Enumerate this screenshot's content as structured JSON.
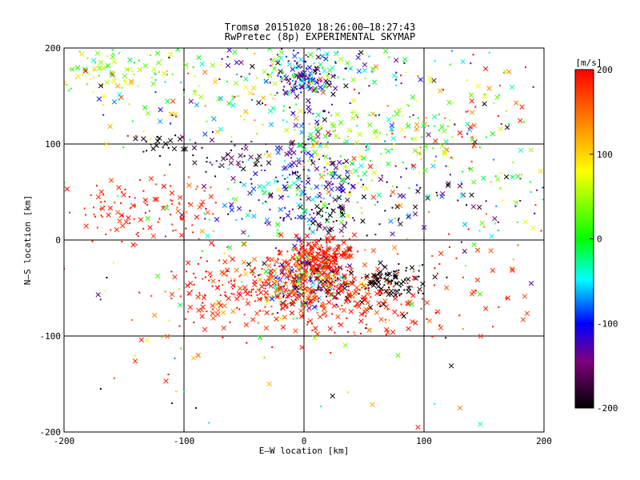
{
  "title": "Tromsø 20151020 18:26:00–18:27:43",
  "subtitle": "RwPretec (8p) EXPERIMENTAL SKYMAP",
  "chart_data": {
    "type": "scatter",
    "xlabel": "E–W location [km]",
    "ylabel": "N–S location [km]",
    "xlim": [
      -200,
      200
    ],
    "ylim": [
      -200,
      200
    ],
    "xticks": [
      "-200",
      "-100",
      "0",
      "100",
      "200"
    ],
    "yticks": [
      "-200",
      "-100",
      "0",
      "100",
      "200"
    ],
    "grid": true,
    "colorbar": {
      "label": "[m/s]",
      "range": [
        -200,
        200
      ],
      "ticks": [
        "200",
        "100",
        "0",
        "-100",
        "-200"
      ],
      "colors": [
        "#000000",
        "#800080",
        "#0000ff",
        "#00ffff",
        "#00ff00",
        "#ffff00",
        "#ff8000",
        "#ff0000"
      ]
    },
    "markers": [
      "x",
      "dot"
    ],
    "clusters": [
      {
        "x": 0,
        "y": 168,
        "sx": 12,
        "sy": 10,
        "n": 110,
        "v": -130,
        "vs": 40
      },
      {
        "x": -5,
        "y": 185,
        "sx": 40,
        "sy": 12,
        "n": 90,
        "v": -80,
        "vs": 80
      },
      {
        "x": -160,
        "y": 180,
        "sx": 25,
        "sy": 15,
        "n": 70,
        "v": 30,
        "vs": 40
      },
      {
        "x": -140,
        "y": 165,
        "sx": 40,
        "sy": 25,
        "n": 60,
        "v": 40,
        "vs": 80
      },
      {
        "x": -40,
        "y": 155,
        "sx": 50,
        "sy": 25,
        "n": 110,
        "v": 0,
        "vs": 110
      },
      {
        "x": 70,
        "y": 140,
        "sx": 50,
        "sy": 40,
        "n": 90,
        "v": 40,
        "vs": 110
      },
      {
        "x": 160,
        "y": 140,
        "sx": 30,
        "sy": 30,
        "n": 40,
        "v": 100,
        "vs": 120
      },
      {
        "x": -120,
        "y": 100,
        "sx": 10,
        "sy": 5,
        "n": 22,
        "v": -200,
        "vs": 8
      },
      {
        "x": -55,
        "y": 88,
        "sx": 20,
        "sy": 10,
        "n": 45,
        "v": -170,
        "vs": 20
      },
      {
        "x": 0,
        "y": 90,
        "sx": 15,
        "sy": 25,
        "n": 80,
        "v": -120,
        "vs": 50
      },
      {
        "x": 70,
        "y": 100,
        "sx": 60,
        "sy": 20,
        "n": 120,
        "v": 20,
        "vs": 60
      },
      {
        "x": -10,
        "y": 50,
        "sx": 30,
        "sy": 25,
        "n": 120,
        "v": -110,
        "vs": 60
      },
      {
        "x": 30,
        "y": 50,
        "sx": 30,
        "sy": 20,
        "n": 80,
        "v": 10,
        "vs": 90
      },
      {
        "x": -140,
        "y": 30,
        "sx": 30,
        "sy": 20,
        "n": 90,
        "v": 190,
        "vs": 15
      },
      {
        "x": -100,
        "y": 40,
        "sx": 15,
        "sy": 10,
        "n": 30,
        "v": 180,
        "vs": 20
      },
      {
        "x": 20,
        "y": 25,
        "sx": 10,
        "sy": 15,
        "n": 40,
        "v": -180,
        "vs": 30
      },
      {
        "x": 100,
        "y": 50,
        "sx": 40,
        "sy": 30,
        "n": 60,
        "v": -160,
        "vs": 40
      },
      {
        "x": 160,
        "y": 40,
        "sx": 25,
        "sy": 25,
        "n": 40,
        "v": 20,
        "vs": 90
      },
      {
        "x": -60,
        "y": 20,
        "sx": 30,
        "sy": 20,
        "n": 30,
        "v": 0,
        "vs": 100
      },
      {
        "x": 15,
        "y": -20,
        "sx": 15,
        "sy": 10,
        "n": 250,
        "v": 190,
        "vs": 15
      },
      {
        "x": 0,
        "y": -45,
        "sx": 20,
        "sy": 12,
        "n": 200,
        "v": -100,
        "vs": 120
      },
      {
        "x": -30,
        "y": -50,
        "sx": 30,
        "sy": 15,
        "n": 160,
        "v": 180,
        "vs": 30
      },
      {
        "x": 30,
        "y": -55,
        "sx": 35,
        "sy": 15,
        "n": 160,
        "v": 180,
        "vs": 30
      },
      {
        "x": 70,
        "y": -45,
        "sx": 15,
        "sy": 10,
        "n": 90,
        "v": -200,
        "vs": 10
      },
      {
        "x": -75,
        "y": -55,
        "sx": 20,
        "sy": 20,
        "n": 70,
        "v": 190,
        "vs": 15
      },
      {
        "x": 30,
        "y": -75,
        "sx": 40,
        "sy": 20,
        "n": 90,
        "v": 190,
        "vs": 15
      },
      {
        "x": 140,
        "y": -50,
        "sx": 40,
        "sy": 40,
        "n": 50,
        "v": 180,
        "vs": 20
      },
      {
        "x": -100,
        "y": -100,
        "sx": 50,
        "sy": 40,
        "n": 25,
        "v": 100,
        "vs": 100
      },
      {
        "x": 0,
        "y": 0,
        "sx": 200,
        "sy": 200,
        "n": 180,
        "v": 0,
        "vs": 150
      }
    ],
    "outliers": [
      {
        "x": -110,
        "y": -170,
        "v": -100
      },
      {
        "x": -90,
        "y": -175,
        "v": -180
      },
      {
        "x": -92,
        "y": -123,
        "v": 110
      },
      {
        "x": -113,
        "y": -140,
        "v": 190
      },
      {
        "x": -115,
        "y": -147,
        "v": 190
      },
      {
        "x": 95,
        "y": -195,
        "v": 190
      },
      {
        "x": 130,
        "y": -175,
        "v": 140
      },
      {
        "x": -200,
        "y": -30,
        "v": 200
      },
      {
        "x": -200,
        "y": 60,
        "v": 0
      }
    ]
  }
}
